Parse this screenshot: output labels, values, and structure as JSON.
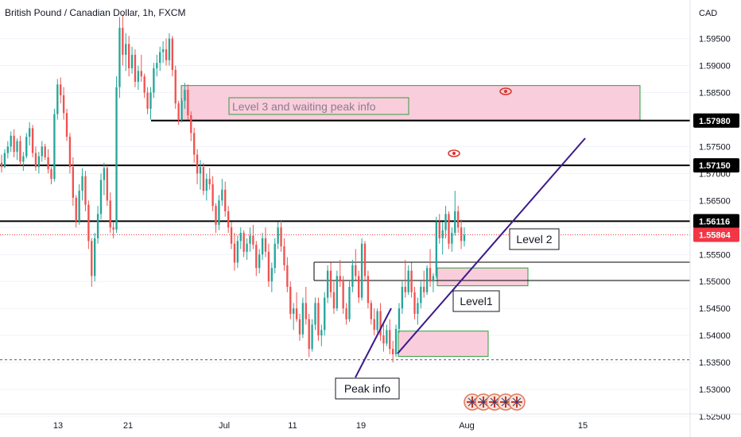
{
  "chart_data": {
    "type": "candlestick",
    "title": "British Pound / Canadian Dollar, 1h, FXCM",
    "currency_label": "CAD",
    "y_range": [
      1.5225,
      1.5995
    ],
    "y_ticks": [
      "1.59500",
      "1.59000",
      "1.58500",
      "1.58000",
      "1.57500",
      "1.57000",
      "1.56500",
      "1.56000",
      "1.55500",
      "1.55000",
      "1.54500",
      "1.54000",
      "1.53500",
      "1.53000",
      "1.52500"
    ],
    "x_ticks": [
      "13",
      "21",
      "Jul",
      "11",
      "19",
      "Aug",
      "15"
    ],
    "last_price": "1.55864",
    "price_levels": [
      {
        "label": "1.57980",
        "value": 1.5798
      },
      {
        "label": "1.57150",
        "value": 1.5715
      },
      {
        "label": "1.56116",
        "value": 1.56116
      }
    ],
    "dashed_level": 1.5355,
    "zones": [
      {
        "name": "Level 3 and waiting peak info",
        "label": "Level 3 and waiting peak info",
        "top": 1.5863,
        "bottom": 1.5799
      },
      {
        "name": "Level 2 zone",
        "label": "",
        "top": 1.5525,
        "bottom": 1.5492
      },
      {
        "name": "Peak zone",
        "label": "",
        "top": 1.5408,
        "bottom": 1.5361
      }
    ],
    "annotations": [
      "Level 2",
      "Level1",
      "Peak info"
    ],
    "series": [
      {
        "type": "ohlc",
        "values": [
          [
            1.572,
            1.5735,
            1.5702,
            1.5712
          ],
          [
            1.5712,
            1.5745,
            1.571,
            1.5738
          ],
          [
            1.5738,
            1.576,
            1.5728,
            1.575
          ],
          [
            1.575,
            1.5778,
            1.574,
            1.577
          ],
          [
            1.577,
            1.5782,
            1.573,
            1.574
          ],
          [
            1.574,
            1.5765,
            1.5725,
            1.576
          ],
          [
            1.576,
            1.577,
            1.5715,
            1.5722
          ],
          [
            1.5722,
            1.574,
            1.5705,
            1.5732
          ],
          [
            1.5732,
            1.5775,
            1.5728,
            1.5768
          ],
          [
            1.5768,
            1.5795,
            1.5752,
            1.5784
          ],
          [
            1.5784,
            1.579,
            1.573,
            1.5738
          ],
          [
            1.5738,
            1.575,
            1.5705,
            1.5712
          ],
          [
            1.5712,
            1.574,
            1.57,
            1.5732
          ],
          [
            1.5732,
            1.576,
            1.5722,
            1.575
          ],
          [
            1.575,
            1.5755,
            1.5725,
            1.573
          ],
          [
            1.573,
            1.5745,
            1.57,
            1.5708
          ],
          [
            1.5708,
            1.5712,
            1.568,
            1.569
          ],
          [
            1.569,
            1.582,
            1.5685,
            1.581
          ],
          [
            1.581,
            1.5875,
            1.58,
            1.5865
          ],
          [
            1.5865,
            1.5878,
            1.583,
            1.5845
          ],
          [
            1.5845,
            1.586,
            1.58,
            1.5812
          ],
          [
            1.5812,
            1.582,
            1.576,
            1.5768
          ],
          [
            1.5768,
            1.5775,
            1.57,
            1.5712
          ],
          [
            1.5712,
            1.573,
            1.564,
            1.5655
          ],
          [
            1.5655,
            1.566,
            1.56,
            1.5612
          ],
          [
            1.5612,
            1.568,
            1.5605,
            1.5668
          ],
          [
            1.5668,
            1.571,
            1.565,
            1.5695
          ],
          [
            1.5695,
            1.5705,
            1.563,
            1.5642
          ],
          [
            1.5642,
            1.565,
            1.556,
            1.5575
          ],
          [
            1.5575,
            1.558,
            1.549,
            1.551
          ],
          [
            1.551,
            1.559,
            1.55,
            1.558
          ],
          [
            1.558,
            1.564,
            1.557,
            1.5625
          ],
          [
            1.5625,
            1.57,
            1.5615,
            1.5688
          ],
          [
            1.5688,
            1.572,
            1.566,
            1.571
          ],
          [
            1.571,
            1.5715,
            1.564,
            1.565
          ],
          [
            1.565,
            1.5665,
            1.559,
            1.56
          ],
          [
            1.56,
            1.561,
            1.558,
            1.5596
          ],
          [
            1.5596,
            1.588,
            1.559,
            1.586
          ],
          [
            1.586,
            1.599,
            1.584,
            1.597
          ],
          [
            1.597,
            1.5995,
            1.59,
            1.592
          ],
          [
            1.592,
            1.596,
            1.589,
            1.594
          ],
          [
            1.594,
            1.5955,
            1.588,
            1.5895
          ],
          [
            1.5895,
            1.5935,
            1.5885,
            1.592
          ],
          [
            1.592,
            1.593,
            1.586,
            1.587
          ],
          [
            1.587,
            1.59,
            1.5855,
            1.589
          ],
          [
            1.589,
            1.592,
            1.587,
            1.588
          ],
          [
            1.588,
            1.5885,
            1.584,
            1.585
          ],
          [
            1.585,
            1.586,
            1.581,
            1.582
          ],
          [
            1.582,
            1.586,
            1.58,
            1.585
          ],
          [
            1.585,
            1.5905,
            1.584,
            1.5895
          ],
          [
            1.5895,
            1.592,
            1.588,
            1.5905
          ],
          [
            1.5905,
            1.5935,
            1.589,
            1.5925
          ],
          [
            1.5925,
            1.5945,
            1.5905,
            1.593
          ],
          [
            1.593,
            1.595,
            1.59,
            1.591
          ],
          [
            1.591,
            1.596,
            1.59,
            1.595
          ],
          [
            1.595,
            1.5955,
            1.588,
            1.5892
          ],
          [
            1.5892,
            1.59,
            1.582,
            1.583
          ],
          [
            1.583,
            1.5835,
            1.579,
            1.58
          ],
          [
            1.58,
            1.584,
            1.5795,
            1.5835
          ],
          [
            1.5835,
            1.5868,
            1.582,
            1.5855
          ],
          [
            1.5855,
            1.5865,
            1.58,
            1.5808
          ],
          [
            1.5808,
            1.5815,
            1.576,
            1.5775
          ],
          [
            1.5775,
            1.5785,
            1.572,
            1.5735
          ],
          [
            1.5735,
            1.5745,
            1.568,
            1.57
          ],
          [
            1.57,
            1.5725,
            1.567,
            1.5712
          ],
          [
            1.5712,
            1.572,
            1.566,
            1.5668
          ],
          [
            1.5668,
            1.57,
            1.565,
            1.569
          ],
          [
            1.569,
            1.571,
            1.567,
            1.568
          ],
          [
            1.568,
            1.5695,
            1.563,
            1.564
          ],
          [
            1.564,
            1.5645,
            1.559,
            1.5605
          ],
          [
            1.5605,
            1.566,
            1.5595,
            1.565
          ],
          [
            1.565,
            1.569,
            1.564,
            1.567
          ],
          [
            1.567,
            1.5685,
            1.562,
            1.563
          ],
          [
            1.563,
            1.564,
            1.559,
            1.56
          ],
          [
            1.56,
            1.561,
            1.556,
            1.557
          ],
          [
            1.557,
            1.559,
            1.552,
            1.5535
          ],
          [
            1.5535,
            1.5585,
            1.5525,
            1.5575
          ],
          [
            1.5575,
            1.56,
            1.556,
            1.559
          ],
          [
            1.559,
            1.5595,
            1.5545,
            1.5555
          ],
          [
            1.5555,
            1.558,
            1.554,
            1.557
          ],
          [
            1.557,
            1.56,
            1.5555,
            1.5585
          ],
          [
            1.5585,
            1.5605,
            1.556,
            1.5568
          ],
          [
            1.5568,
            1.5575,
            1.551,
            1.5525
          ],
          [
            1.5525,
            1.556,
            1.5515,
            1.555
          ],
          [
            1.555,
            1.559,
            1.554,
            1.558
          ],
          [
            1.558,
            1.56,
            1.5545,
            1.5555
          ],
          [
            1.5555,
            1.557,
            1.549,
            1.55
          ],
          [
            1.55,
            1.5535,
            1.548,
            1.5525
          ],
          [
            1.5525,
            1.558,
            1.5515,
            1.557
          ],
          [
            1.557,
            1.561,
            1.556,
            1.56
          ],
          [
            1.56,
            1.5612,
            1.5555,
            1.5565
          ],
          [
            1.5565,
            1.558,
            1.552,
            1.553
          ],
          [
            1.553,
            1.5545,
            1.548,
            1.549
          ],
          [
            1.549,
            1.55,
            1.543,
            1.544
          ],
          [
            1.544,
            1.546,
            1.541,
            1.545
          ],
          [
            1.545,
            1.548,
            1.5425,
            1.543
          ],
          [
            1.543,
            1.544,
            1.539,
            1.5402
          ],
          [
            1.5402,
            1.547,
            1.5395,
            1.546
          ],
          [
            1.546,
            1.549,
            1.542,
            1.543
          ],
          [
            1.543,
            1.544,
            1.536,
            1.5375
          ],
          [
            1.5375,
            1.543,
            1.537,
            1.542
          ],
          [
            1.542,
            1.547,
            1.541,
            1.546
          ],
          [
            1.546,
            1.547,
            1.539,
            1.54
          ],
          [
            1.54,
            1.542,
            1.538,
            1.541
          ],
          [
            1.541,
            1.548,
            1.54,
            1.547
          ],
          [
            1.547,
            1.553,
            1.546,
            1.552
          ],
          [
            1.552,
            1.5535,
            1.547,
            1.548
          ],
          [
            1.548,
            1.55,
            1.544,
            1.545
          ],
          [
            1.545,
            1.552,
            1.5445,
            1.551
          ],
          [
            1.551,
            1.554,
            1.549,
            1.55
          ],
          [
            1.55,
            1.551,
            1.544,
            1.545
          ],
          [
            1.545,
            1.546,
            1.542,
            1.543
          ],
          [
            1.543,
            1.55,
            1.5425,
            1.549
          ],
          [
            1.549,
            1.554,
            1.548,
            1.553
          ],
          [
            1.553,
            1.556,
            1.55,
            1.551
          ],
          [
            1.551,
            1.552,
            1.546,
            1.547
          ],
          [
            1.547,
            1.558,
            1.5465,
            1.557
          ],
          [
            1.557,
            1.5575,
            1.55,
            1.551
          ],
          [
            1.551,
            1.552,
            1.545,
            1.546
          ],
          [
            1.546,
            1.5465,
            1.542,
            1.543
          ],
          [
            1.543,
            1.545,
            1.54,
            1.541
          ],
          [
            1.541,
            1.545,
            1.5405,
            1.5445
          ],
          [
            1.5445,
            1.546,
            1.539,
            1.54
          ],
          [
            1.54,
            1.542,
            1.537,
            1.5385
          ],
          [
            1.5385,
            1.542,
            1.538,
            1.541
          ],
          [
            1.541,
            1.543,
            1.5365,
            1.5375
          ],
          [
            1.5375,
            1.539,
            1.535,
            1.5365
          ],
          [
            1.5365,
            1.542,
            1.536,
            1.5412
          ],
          [
            1.5412,
            1.546,
            1.5405,
            1.545
          ],
          [
            1.545,
            1.55,
            1.544,
            1.549
          ],
          [
            1.549,
            1.554,
            1.547,
            1.548
          ],
          [
            1.548,
            1.553,
            1.5475,
            1.552
          ],
          [
            1.552,
            1.5535,
            1.547,
            1.548
          ],
          [
            1.548,
            1.549,
            1.543,
            1.544
          ],
          [
            1.544,
            1.547,
            1.542,
            1.546
          ],
          [
            1.546,
            1.55,
            1.545,
            1.549
          ],
          [
            1.549,
            1.552,
            1.547,
            1.548
          ],
          [
            1.548,
            1.553,
            1.5475,
            1.5525
          ],
          [
            1.5525,
            1.556,
            1.549,
            1.55
          ],
          [
            1.55,
            1.5515,
            1.548,
            1.551
          ],
          [
            1.551,
            1.562,
            1.5505,
            1.561
          ],
          [
            1.561,
            1.5625,
            1.557,
            1.558
          ],
          [
            1.558,
            1.561,
            1.555,
            1.5595
          ],
          [
            1.5595,
            1.564,
            1.558,
            1.5625
          ],
          [
            1.5625,
            1.563,
            1.556,
            1.557
          ],
          [
            1.557,
            1.56,
            1.5555,
            1.559
          ],
          [
            1.559,
            1.5668,
            1.5585,
            1.563
          ],
          [
            1.563,
            1.564,
            1.559,
            1.56
          ],
          [
            1.56,
            1.5615,
            1.556,
            1.5575
          ],
          [
            1.5575,
            1.56,
            1.5565,
            1.5586
          ]
        ]
      }
    ]
  },
  "colors": {
    "up": "#26a69a",
    "down": "#ef5350",
    "zone_fill": "#f8c4d6",
    "zone_border": "#2e9e3e",
    "trendline": "#3d1a8a",
    "level_line": "#000000",
    "last_price_bg": "#f23645",
    "eye_icon": "#d9342b"
  },
  "icon_names": [
    "eye-icon",
    "flag-icon"
  ]
}
